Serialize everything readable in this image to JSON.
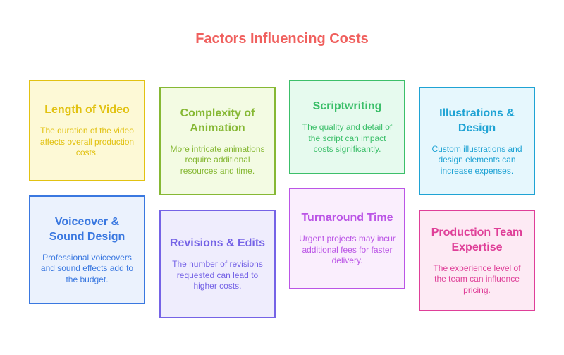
{
  "title": "Factors Influencing Costs",
  "cards": [
    {
      "title": "Length of Video",
      "text": "The duration of the video affects overall production costs.",
      "color": "#e2c212",
      "bg": "#fdf9d6"
    },
    {
      "title": "Complexity of Animation",
      "text": "More intricate animations require additional resources and time.",
      "color": "#86b834",
      "bg": "#f3fbe3"
    },
    {
      "title": "Scriptwriting",
      "text": "The quality and detail of the script can impact costs significantly.",
      "color": "#3cbf6a",
      "bg": "#e6faee"
    },
    {
      "title": "Illustrations & Design",
      "text": "Custom illustrations and design elements can increase expenses.",
      "color": "#1fa3d4",
      "bg": "#e6f7fd"
    },
    {
      "title": "Voiceover & Sound Design",
      "text": "Professional voiceovers and sound effects add to the budget.",
      "color": "#3a78e0",
      "bg": "#ebf2fd"
    },
    {
      "title": "Revisions & Edits",
      "text": "The number of revisions requested can lead to higher costs.",
      "color": "#7563e6",
      "bg": "#efedfd"
    },
    {
      "title": "Turnaround Time",
      "text": "Urgent projects may incur additional fees for faster delivery.",
      "color": "#bb55e6",
      "bg": "#faeefd"
    },
    {
      "title": "Production Team Expertise",
      "text": "The experience level of the team can influence pricing.",
      "color": "#df3f98",
      "bg": "#fdeaf4"
    }
  ]
}
